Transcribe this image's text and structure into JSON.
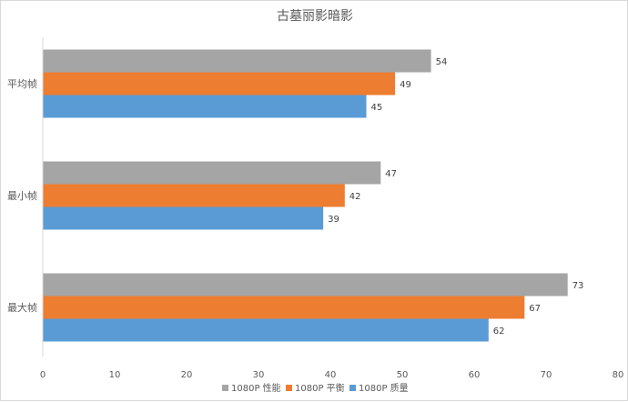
{
  "chart_data": {
    "type": "bar",
    "orientation": "horizontal",
    "title": "古墓丽影暗影",
    "categories": [
      "平均帧",
      "最小帧",
      "最大帧"
    ],
    "series": [
      {
        "name": "1080P 性能",
        "color": "#a5a5a5",
        "values": [
          54,
          47,
          73
        ]
      },
      {
        "name": "1080P 平衡",
        "color": "#ed7d31",
        "values": [
          49,
          42,
          67
        ]
      },
      {
        "name": "1080P 质量",
        "color": "#5b9bd5",
        "values": [
          45,
          39,
          62
        ]
      }
    ],
    "xlim": [
      0,
      80
    ],
    "xticks": [
      0,
      10,
      20,
      30,
      40,
      50,
      60,
      70,
      80
    ],
    "xlabel": "",
    "ylabel": "",
    "grid": false,
    "legend": "bottom"
  }
}
